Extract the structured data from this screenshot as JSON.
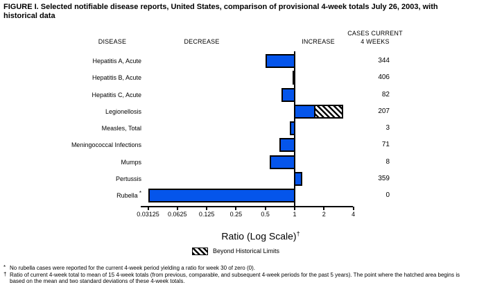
{
  "title": "FIGURE I. Selected notifiable disease reports, United States, comparison of provisional 4-week totals July 26, 2003, with historical data",
  "columns": {
    "disease": "DISEASE",
    "decrease": "DECREASE",
    "increase": "INCREASE",
    "cases_line1": "CASES CURRENT",
    "cases_line2": "4 WEEKS"
  },
  "chart_data": {
    "type": "bar",
    "orientation": "horizontal-diverging",
    "x_scale": "log2",
    "baseline": 1,
    "x_ticks": [
      "0.03125",
      "0.0625",
      "0.125",
      "0.25",
      "0.5",
      "1",
      "2",
      "4"
    ],
    "x_range": [
      0.03125,
      4
    ],
    "xlabel": "Ratio (Log Scale)",
    "xlabel_note_marker": "†",
    "bar_color": "#0555EB",
    "rows": [
      {
        "disease": "Hepatitis A, Acute",
        "ratio": 0.5,
        "cases": "344"
      },
      {
        "disease": "Hepatitis B, Acute",
        "ratio": 0.95,
        "cases": "406"
      },
      {
        "disease": "Hepatitis C, Acute",
        "ratio": 0.73,
        "cases": "82"
      },
      {
        "disease": "Legionellosis",
        "ratio": 1.58,
        "cases": "207",
        "beyond_historical_limits": true,
        "hatch_end_ratio": 3.05
      },
      {
        "disease": "Measles, Total",
        "ratio": 0.89,
        "cases": "3"
      },
      {
        "disease": "Meningococcal Infections",
        "ratio": 0.7,
        "cases": "71"
      },
      {
        "disease": "Mumps",
        "ratio": 0.55,
        "cases": "8"
      },
      {
        "disease": "Pertussis",
        "ratio": 1.16,
        "cases": "359"
      },
      {
        "disease": "Rubella",
        "ratio": 0,
        "cases": "0",
        "note_marker": "*"
      }
    ],
    "legend": [
      {
        "swatch": "hatched",
        "label": "Beyond Historical Limits"
      }
    ]
  },
  "footnotes": [
    {
      "marker": "*",
      "text": "No rubella cases were reported for the current 4-week period yielding a ratio for week 30 of zero (0)."
    },
    {
      "marker": "†",
      "text": "Ratio of current 4-week total to mean of 15 4-week totals (from previous, comparable, and subsequent 4-week periods for the past 5 years). The point where the hatched area begins is based on the mean and two standard deviations of these 4-week totals."
    }
  ]
}
